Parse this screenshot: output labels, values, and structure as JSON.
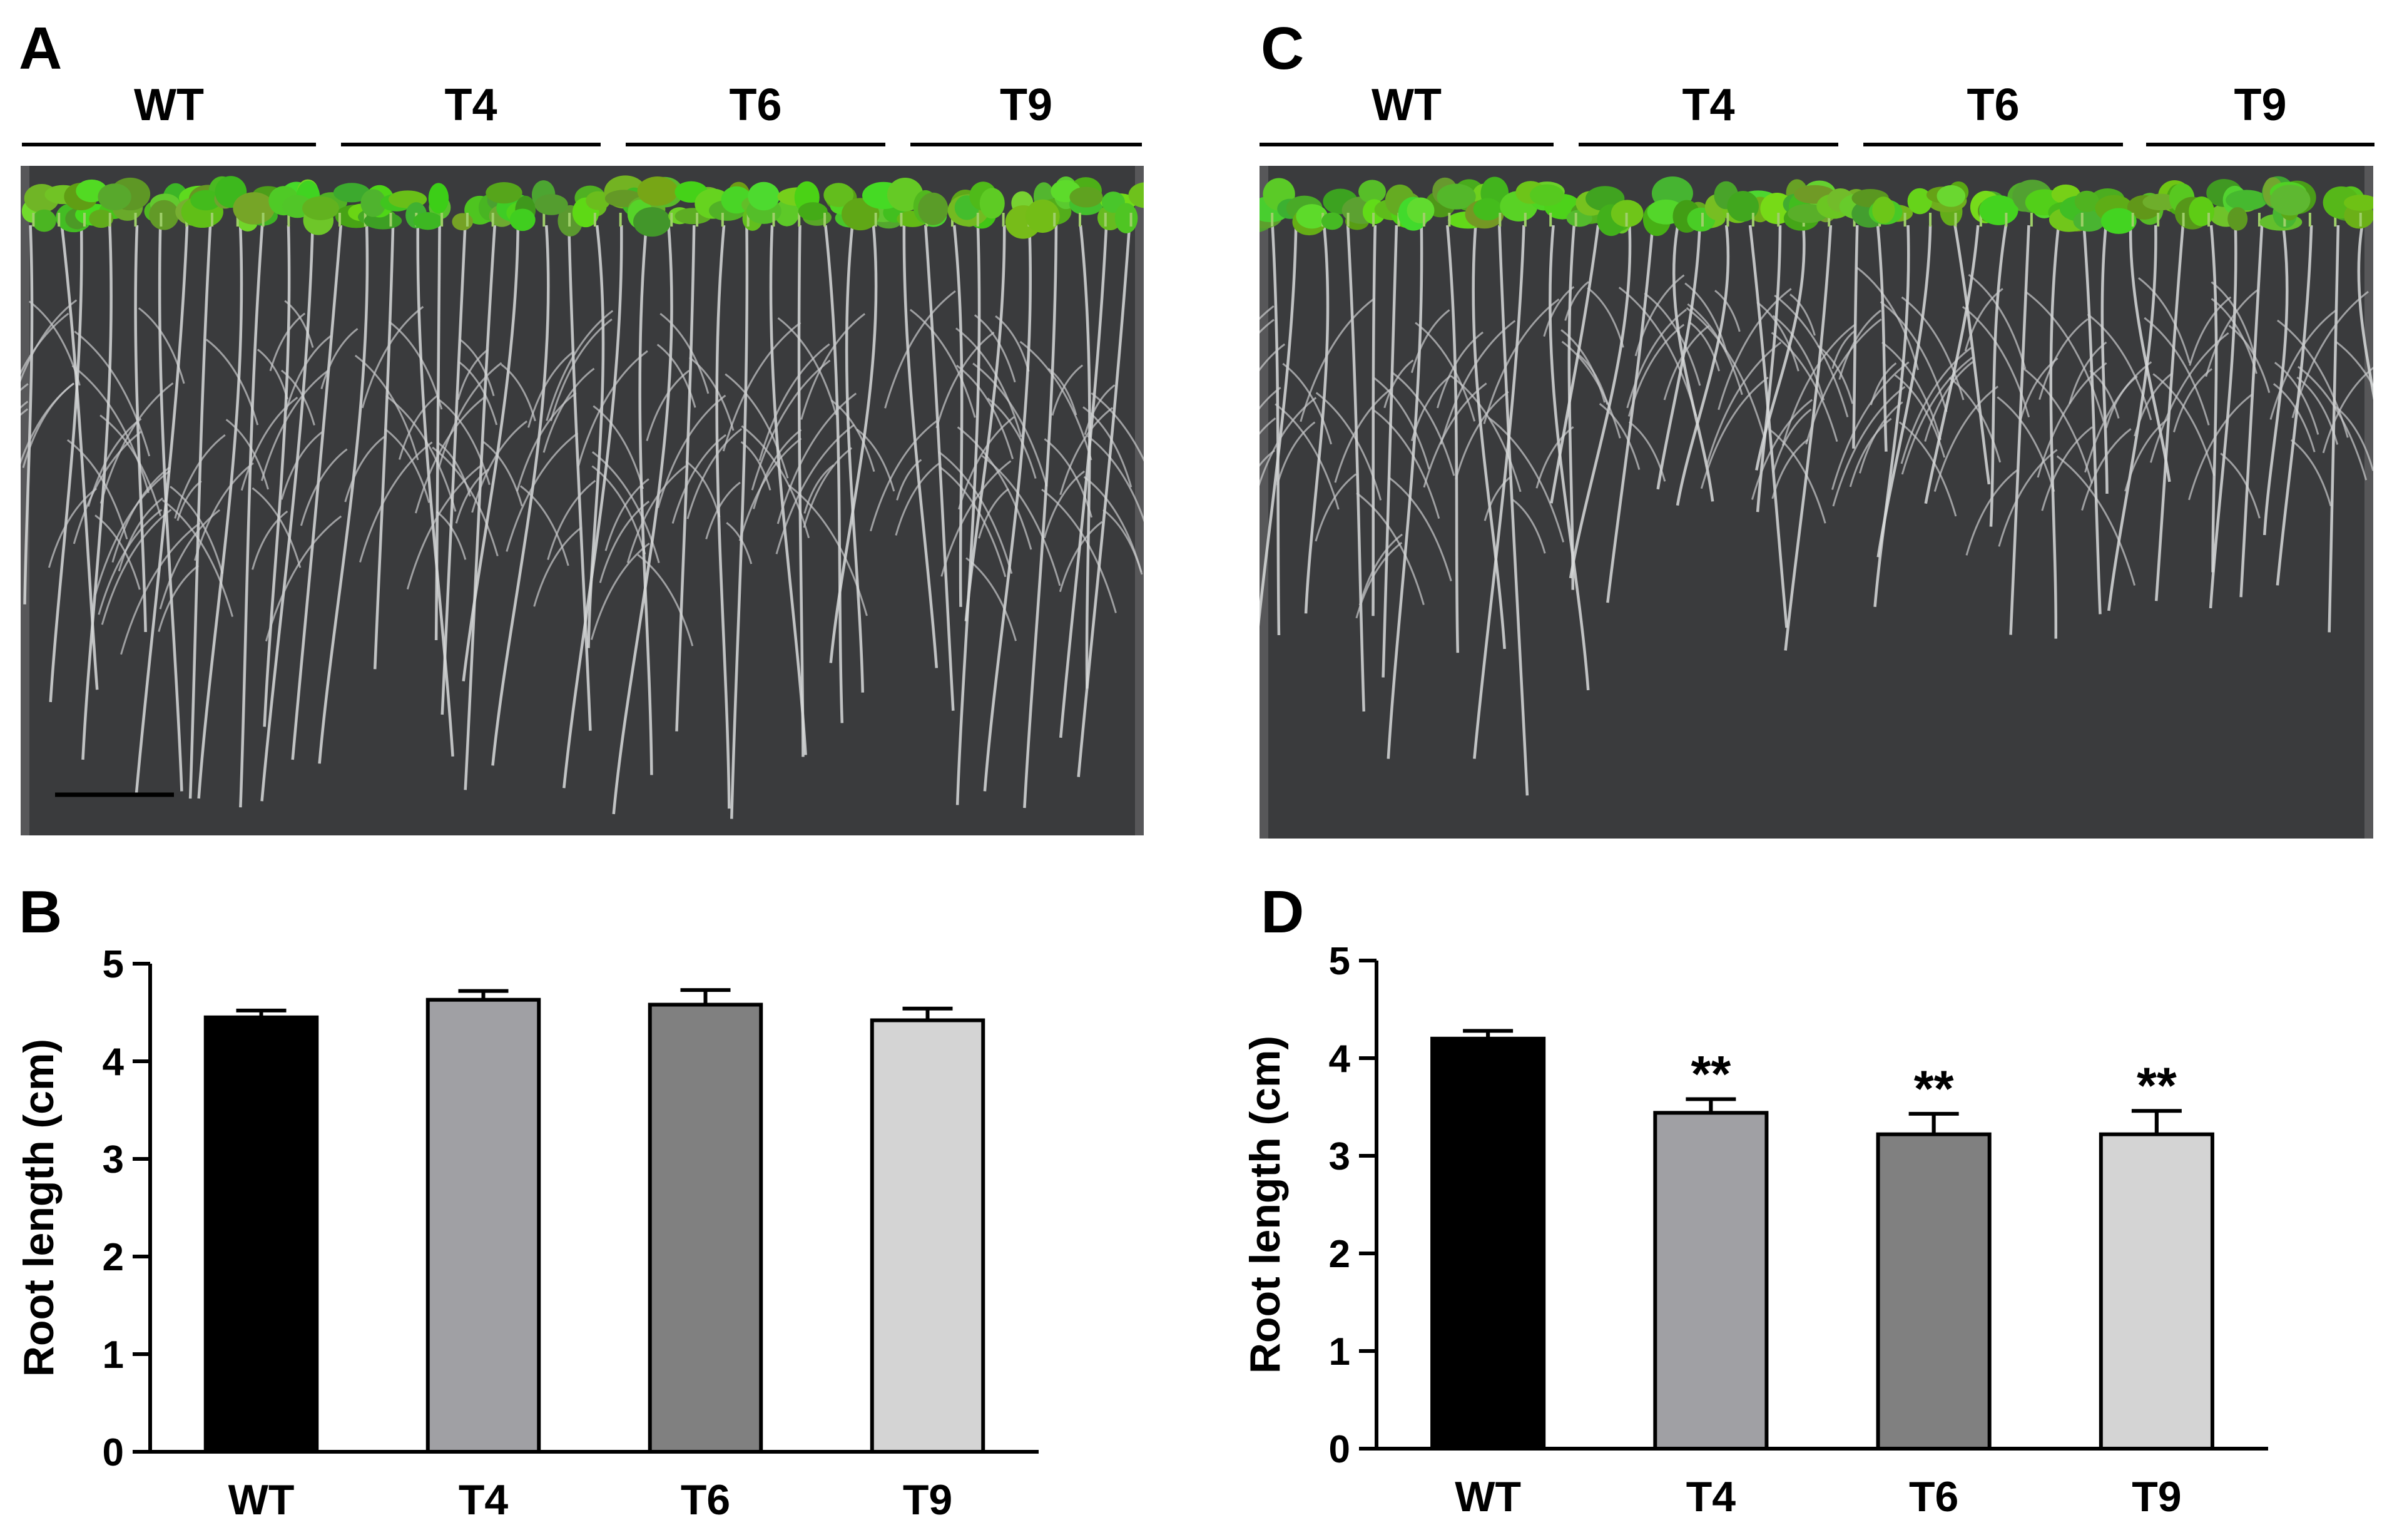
{
  "panels": {
    "A": "A",
    "B": "B",
    "C": "C",
    "D": "D"
  },
  "photo_groups": [
    "WT",
    "T4",
    "T6",
    "T9"
  ],
  "chart_data": [
    {
      "type": "bar",
      "panel": "B",
      "categories": [
        "WT",
        "T4",
        "T6",
        "T9"
      ],
      "values": [
        4.45,
        4.63,
        4.58,
        4.42
      ],
      "errors": [
        0.07,
        0.09,
        0.15,
        0.12
      ],
      "significance": [
        "",
        "",
        "",
        ""
      ],
      "bar_colors": [
        "#000000",
        "#a0a0a4",
        "#808080",
        "#d4d4d4"
      ],
      "title": "",
      "xlabel": "",
      "ylabel": "Root length (cm)",
      "ylim": [
        0,
        5
      ],
      "yticks": [
        0,
        1,
        2,
        3,
        4,
        5
      ],
      "grid": false
    },
    {
      "type": "bar",
      "panel": "D",
      "categories": [
        "WT",
        "T4",
        "T6",
        "T9"
      ],
      "values": [
        4.2,
        3.44,
        3.22,
        3.22
      ],
      "errors": [
        0.08,
        0.14,
        0.21,
        0.24
      ],
      "significance": [
        "",
        "**",
        "**",
        "**"
      ],
      "bar_colors": [
        "#000000",
        "#a0a0a4",
        "#808080",
        "#d4d4d4"
      ],
      "title": "",
      "xlabel": "",
      "ylabel": "Root length (cm)",
      "ylim": [
        0,
        5
      ],
      "yticks": [
        0,
        1,
        2,
        3,
        4,
        5
      ],
      "grid": false
    }
  ]
}
